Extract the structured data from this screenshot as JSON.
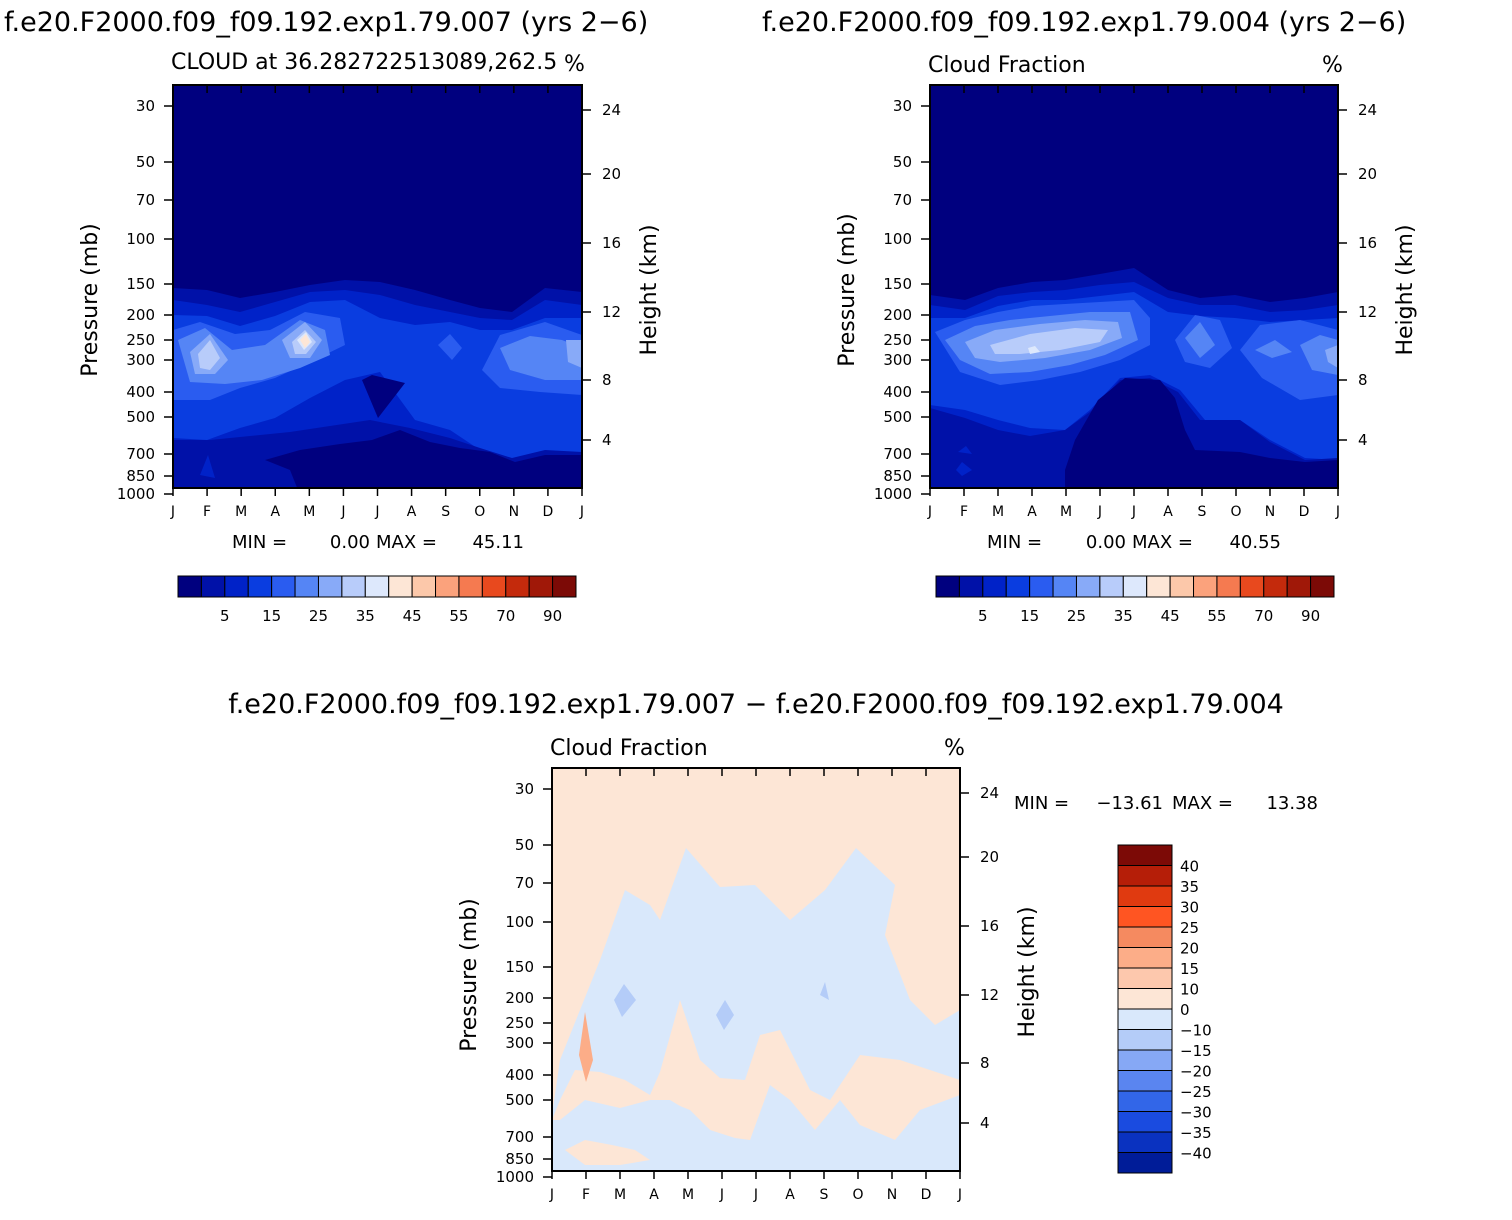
{
  "figure": {
    "left_title": "f.e20.F2000.f09_f09.192.exp1.79.007 (yrs 2−6)",
    "right_title": "f.e20.F2000.f09_f09.192.exp1.79.004 (yrs 2−6)",
    "diff_title": "f.e20.F2000.f09_f09.192.exp1.79.007 − f.e20.F2000.f09_f09.192.exp1.79.004"
  },
  "chart_data": [
    {
      "type": "heatmap",
      "id": "left",
      "subtitle_left": "CLOUD at 36.282722513089,262.5",
      "units": "%",
      "ylabel": "Pressure (mb)",
      "y2label": "Height (km)",
      "months": [
        "J",
        "F",
        "M",
        "A",
        "M",
        "J",
        "J",
        "A",
        "S",
        "O",
        "N",
        "D",
        "J"
      ],
      "pressure_ticks": [
        "30",
        "50",
        "70",
        "100",
        "150",
        "200",
        "250",
        "300",
        "400",
        "500",
        "700",
        "850",
        "1000"
      ],
      "height_ticks": [
        "24",
        "20",
        "16",
        "12",
        "8",
        "4"
      ],
      "min_label": "MIN =",
      "min_value": "0.00",
      "max_label": "MAX =",
      "max_value": "45.11",
      "levels": [
        "5",
        "15",
        "25",
        "35",
        "45",
        "55",
        "70",
        "90"
      ],
      "colors": [
        "#00007f",
        "#0011a8",
        "#0022c8",
        "#0a3de0",
        "#2a5cf0",
        "#5585f5",
        "#88aaf8",
        "#b8ccfa",
        "#dde8fc",
        "#fde6d6",
        "#fcc8aa",
        "#fba27c",
        "#f57a50",
        "#e8491e",
        "#c42a0c",
        "#a01808",
        "#7c0a06"
      ]
    },
    {
      "type": "heatmap",
      "id": "right",
      "subtitle_left": "Cloud Fraction",
      "units": "%",
      "ylabel": "Pressure (mb)",
      "y2label": "Height (km)",
      "months": [
        "J",
        "F",
        "M",
        "A",
        "M",
        "J",
        "J",
        "A",
        "S",
        "O",
        "N",
        "D",
        "J"
      ],
      "pressure_ticks": [
        "30",
        "50",
        "70",
        "100",
        "150",
        "200",
        "250",
        "300",
        "400",
        "500",
        "700",
        "850",
        "1000"
      ],
      "height_ticks": [
        "24",
        "20",
        "16",
        "12",
        "8",
        "4"
      ],
      "min_label": "MIN =",
      "min_value": "0.00",
      "max_label": "MAX =",
      "max_value": "40.55",
      "levels": [
        "5",
        "15",
        "25",
        "35",
        "45",
        "55",
        "70",
        "90"
      ],
      "colors": [
        "#00007f",
        "#0011a8",
        "#0022c8",
        "#0a3de0",
        "#2a5cf0",
        "#5585f5",
        "#88aaf8",
        "#b8ccfa",
        "#dde8fc",
        "#fde6d6",
        "#fcc8aa",
        "#fba27c",
        "#f57a50",
        "#e8491e",
        "#c42a0c",
        "#a01808",
        "#7c0a06"
      ]
    },
    {
      "type": "heatmap",
      "id": "diff",
      "subtitle_left": "Cloud Fraction",
      "units": "%",
      "ylabel": "Pressure (mb)",
      "y2label": "Height (km)",
      "months": [
        "J",
        "F",
        "M",
        "A",
        "M",
        "J",
        "J",
        "A",
        "S",
        "O",
        "N",
        "D",
        "J"
      ],
      "pressure_ticks": [
        "30",
        "50",
        "70",
        "100",
        "150",
        "200",
        "250",
        "300",
        "400",
        "500",
        "700",
        "850",
        "1000"
      ],
      "height_ticks": [
        "24",
        "20",
        "16",
        "12",
        "8",
        "4"
      ],
      "min_label": "MIN =",
      "min_value": "−13.61",
      "max_label": "MAX =",
      "max_value": "13.38",
      "levels": [
        "40",
        "35",
        "30",
        "25",
        "20",
        "15",
        "10",
        "0",
        "−10",
        "−15",
        "−20",
        "−25",
        "−30",
        "−35",
        "−40"
      ],
      "colors": [
        "#7c0a06",
        "#b51e08",
        "#e03a10",
        "#ff5522",
        "#f58a60",
        "#fcad88",
        "#fdc8ad",
        "#fde6d6",
        "#d9e8fb",
        "#b4ccf8",
        "#86a8f5",
        "#5a85f0",
        "#3266e8",
        "#1a4be0",
        "#0a32c0",
        "#001c98"
      ]
    }
  ]
}
